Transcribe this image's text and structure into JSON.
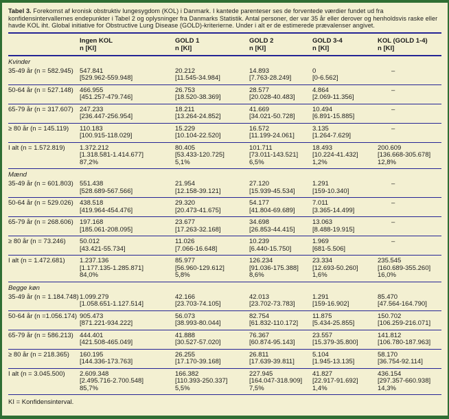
{
  "caption": {
    "label": "Tabel 3.",
    "text": "Forekomst af kronisk obstruktiv lungesygdom (KOL) i Danmark. I kantede parenteser ses de forventede værdier fundet ud fra konfidensintervallernes endepunkter i Tabel 2 og oplysninger fra Danmarks Statistik. Antal personer, der var 35 år eller derover og henholdsvis raske eller havde KOL iht. Global initiative for Obstructive Lung Disease (GOLD)-kriterierne. Under i alt er de estimerede prævalenser angivet."
  },
  "table": {
    "columns": [
      {
        "label": "Ingen KOL",
        "sub": "n [KI]"
      },
      {
        "label": "GOLD 1",
        "sub": "n [KI]"
      },
      {
        "label": "GOLD 2",
        "sub": "n [KI]"
      },
      {
        "label": "GOLD 3-4",
        "sub": "n [KI]"
      },
      {
        "label": "KOL (GOLD 1-4)",
        "sub": "n [KI]"
      }
    ],
    "sections": [
      {
        "name": "Kvinder",
        "rows": [
          {
            "label": "35-49 år (n = 582.945)",
            "cells": [
              [
                "547.841",
                "[529.962-559.948]"
              ],
              [
                "20.212",
                "[11.545-34.984]"
              ],
              [
                "14.893",
                "[7.763-28.249]"
              ],
              [
                "0",
                "[0-6.562]"
              ],
              [
                "–"
              ]
            ]
          },
          {
            "label": "50-64 år (n = 527.148)",
            "cells": [
              [
                "466.955",
                "[451.257-479.746]"
              ],
              [
                "26.753",
                "[18.520-38.369]"
              ],
              [
                "28.577",
                "[20.028-40.483]"
              ],
              [
                "4.864",
                "[2.069-11.356]"
              ],
              [
                "–"
              ]
            ]
          },
          {
            "label": "65-79 år (n = 317.607)",
            "cells": [
              [
                "247.233",
                "[236.447-256.954]"
              ],
              [
                "18.211",
                "[13.264-24.852]"
              ],
              [
                "41.669",
                "[34.021-50.728]"
              ],
              [
                "10.494",
                "[6.891-15.885]"
              ],
              [
                "–"
              ]
            ]
          },
          {
            "label": "≥ 80 år (n = 145.119)",
            "cells": [
              [
                "110.183",
                "[100.915-118.029]"
              ],
              [
                "15.229",
                "[10.104-22.520]"
              ],
              [
                "16.572",
                "[11.199-24.061]"
              ],
              [
                "3.135",
                "[1.264-7.629]"
              ],
              [
                "–"
              ]
            ]
          },
          {
            "label": "I alt (n = 1.572.819)",
            "cells": [
              [
                "1.372.212",
                "[1.318.581-1.414.677]",
                "87,2%"
              ],
              [
                "80.405",
                "[53.433-120.725]",
                "5,1%"
              ],
              [
                "101.711",
                "[73.011-143.521]",
                "6,5%"
              ],
              [
                "18.493",
                "[10.224-41.432]",
                "1,2%"
              ],
              [
                "200.609",
                "[136.668-305.678]",
                "12,8%"
              ]
            ]
          }
        ]
      },
      {
        "name": "Mænd",
        "rows": [
          {
            "label": "35-49 år (n = 601.803)",
            "cells": [
              [
                "551.438",
                "[528.689-567.566]"
              ],
              [
                "21.954",
                "[12.158-39.121]"
              ],
              [
                "27.120",
                "[15.939-45.534]"
              ],
              [
                "1.291",
                "[159-10.340]"
              ],
              [
                "–"
              ]
            ]
          },
          {
            "label": "50-64 år (n = 529.026)",
            "cells": [
              [
                "438.518",
                "[419.964-454.476]"
              ],
              [
                "29.320",
                "[20.473-41.675]"
              ],
              [
                "54.177",
                "[41.804-69.689]"
              ],
              [
                "7.011",
                "[3.365-14.499]"
              ],
              [
                "–"
              ]
            ]
          },
          {
            "label": "65-79 år (n = 268.606)",
            "cells": [
              [
                "197.168",
                "[185.061-208.095]"
              ],
              [
                "23.677",
                "[17.263-32.168]"
              ],
              [
                "34.698",
                "[26.853-44.415]"
              ],
              [
                "13.063",
                "[8.488-19.915]"
              ],
              [
                "–"
              ]
            ]
          },
          {
            "label": "≥ 80 år (n = 73.246)",
            "cells": [
              [
                "50.012",
                "[43.421-55.734]"
              ],
              [
                "11.026",
                "[7.066-16.648]"
              ],
              [
                "10.239",
                "[6.440-15.750]"
              ],
              [
                "1.969",
                "[681-5.506]"
              ],
              [
                "–"
              ]
            ]
          },
          {
            "label": "I alt (n = 1.472.681)",
            "cells": [
              [
                "1.237.136",
                "[1.177.135-1.285.871]",
                "84,0%"
              ],
              [
                "85.977",
                "[56.960-129.612]",
                "5,8%"
              ],
              [
                "126.234",
                "[91.036-175.388]",
                "8,6%"
              ],
              [
                "23.334",
                "[12.693-50.260]",
                "1,6%"
              ],
              [
                "235.545",
                "[160.689-355.260]",
                "16,0%"
              ]
            ]
          }
        ]
      },
      {
        "name": "Begge køn",
        "rows": [
          {
            "label": "35-49 år (n = 1.184.748)",
            "cells": [
              [
                "1.099.279",
                "[1.058.651-1.127.514]"
              ],
              [
                "42.166",
                "[23.703-74.105]"
              ],
              [
                "42.013",
                "[23.702-73.783]"
              ],
              [
                "1.291",
                "[159-16.902]"
              ],
              [
                "85.470",
                "[47.564-164.790]"
              ]
            ]
          },
          {
            "label": "50-64 år (n =1.056.174)",
            "cells": [
              [
                "905.473",
                "[871.221-934.222]"
              ],
              [
                "56.073",
                "[38.993-80.044]"
              ],
              [
                "82.754",
                "[61.832-110.172]"
              ],
              [
                "11.875",
                "[5.434-25.855]"
              ],
              [
                "150.702",
                "[106.259-216.071]"
              ]
            ]
          },
          {
            "label": "65-79 år (n = 586.213)",
            "cells": [
              [
                "444.401",
                "[421.508-465.049]"
              ],
              [
                "41.888",
                "[30.527-57.020]"
              ],
              [
                "76.367",
                "[60.874-95.143]"
              ],
              [
                "23.557",
                "[15.379-35.800]"
              ],
              [
                "141.812",
                "[106.780-187.963]"
              ]
            ]
          },
          {
            "label": "≥ 80 år (n = 218.365)",
            "cells": [
              [
                "160.195",
                "[144.336-173.763]"
              ],
              [
                "26.255",
                "[17.170-39.168]"
              ],
              [
                "26.811",
                "[17.639-39.811]"
              ],
              [
                "5.104",
                "[1.945-13.135]"
              ],
              [
                "58.170",
                "[36.754-92.114]"
              ]
            ]
          },
          {
            "label": "I alt (n = 3.045.500)",
            "cells": [
              [
                "2.609.348",
                "[2.495.716-2.700.548]",
                "85,7%"
              ],
              [
                "166.382",
                "[110.393-250.337]",
                "5,5%"
              ],
              [
                "227.945",
                "[164.047-318.909]",
                "7,5%"
              ],
              [
                "41.827",
                "[22.917-91.692]",
                "1,4%"
              ],
              [
                "436.154",
                "[297.357-660.938]",
                "14,3%"
              ]
            ]
          }
        ]
      }
    ]
  },
  "footnote": "KI = Konfidensinterval.",
  "colors": {
    "background": "#f3f0d2",
    "frame_green": "#2f6e33",
    "rule_navy": "#232394",
    "text": "#1b1b1b"
  }
}
